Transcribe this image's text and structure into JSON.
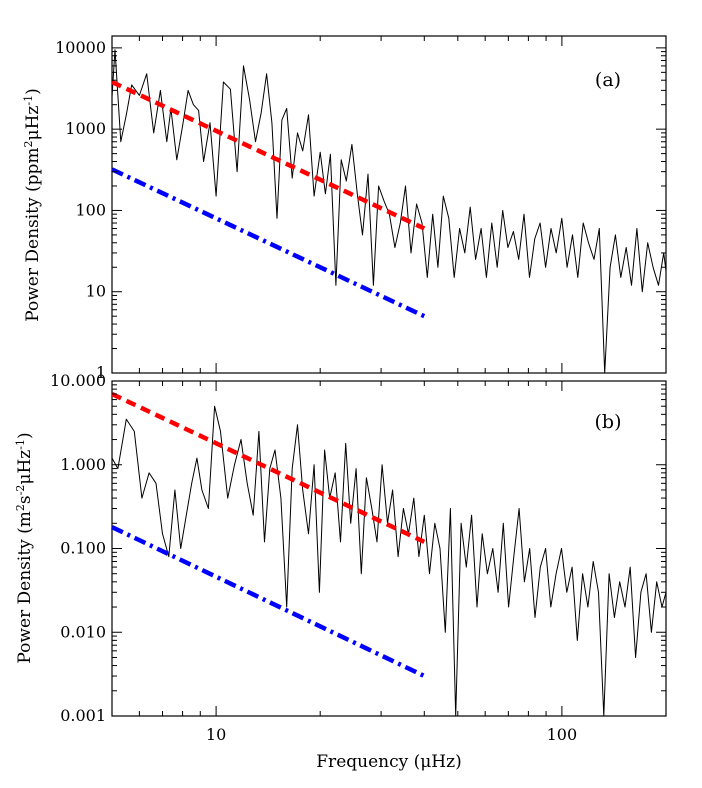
{
  "chart_data": [
    {
      "type": "line",
      "panel_label": "(a)",
      "ylabel_main": "Power Density (ppm",
      "ylabel_sup1": "2",
      "ylabel_mid": "μHz",
      "ylabel_sup2": "-1",
      "ylabel_end": ")",
      "xscale": "log",
      "yscale": "log",
      "xlim": [
        5,
        200
      ],
      "ylim": [
        1,
        14000
      ],
      "ytick_values": [
        1,
        10,
        100,
        1000,
        10000
      ],
      "ytick_labels": [
        "1",
        "10",
        "100",
        "1000",
        "10000"
      ],
      "series": [
        {
          "color": "#000000",
          "style": "solid",
          "x": [
            5.0,
            5.1,
            5.3,
            5.5,
            5.7,
            6.0,
            6.3,
            6.6,
            6.9,
            7.2,
            7.4,
            7.7,
            8.0,
            8.3,
            8.6,
            8.9,
            9.2,
            9.6,
            10.0,
            10.5,
            11.0,
            11.5,
            12.0,
            12.5,
            13.0,
            13.5,
            14.0,
            14.5,
            15.0,
            15.5,
            16.0,
            16.6,
            17.2,
            17.8,
            18.5,
            19.2,
            20.0,
            20.7,
            21.4,
            22.2,
            23.0,
            23.8,
            24.7,
            25.6,
            26.5,
            27.5,
            28.5,
            29.5,
            30.6,
            31.7,
            32.9,
            34.1,
            35.3,
            36.6,
            38.0,
            39.4,
            40.8,
            42.3,
            43.8,
            45.4,
            47.1,
            48.8,
            50.6,
            52.4,
            54.3,
            56.3,
            58.4,
            60.5,
            62.7,
            65.0,
            67.4,
            69.8,
            72.4,
            75.0,
            77.7,
            80.6,
            83.5,
            86.5,
            89.7,
            93.0,
            96.3,
            99.9,
            103.5,
            107.3,
            111.2,
            115.2,
            119.4,
            123.8,
            128.3,
            133.0,
            137.8,
            142.8,
            148.0,
            153.4,
            159.0,
            164.8,
            170.8,
            177.0,
            183.5,
            190.2,
            197.0,
            200.0
          ],
          "y": [
            2500,
            9500,
            700,
            1500,
            3500,
            2600,
            4800,
            900,
            3000,
            700,
            1800,
            420,
            1100,
            3000,
            2000,
            1700,
            400,
            1200,
            150,
            3800,
            3100,
            300,
            6000,
            2300,
            700,
            1600,
            4800,
            1200,
            80,
            1300,
            1800,
            250,
            900,
            540,
            1500,
            150,
            520,
            160,
            490,
            12,
            420,
            230,
            650,
            160,
            50,
            280,
            12,
            200,
            130,
            90,
            35,
            70,
            200,
            30,
            120,
            70,
            15,
            90,
            20,
            150,
            80,
            15,
            60,
            30,
            110,
            25,
            60,
            15,
            70,
            20,
            100,
            35,
            55,
            25,
            90,
            15,
            45,
            70,
            20,
            60,
            30,
            80,
            20,
            50,
            15,
            70,
            40,
            25,
            60,
            1,
            20,
            50,
            15,
            35,
            12,
            60,
            10,
            40,
            20,
            12,
            30,
            18
          ]
        },
        {
          "color": "#ff0000",
          "style": "dashed",
          "x": [
            5,
            40
          ],
          "y": [
            3800,
            60
          ]
        },
        {
          "color": "#0000ff",
          "style": "dashdot",
          "x": [
            5,
            40
          ],
          "y": [
            320,
            5
          ]
        }
      ]
    },
    {
      "type": "line",
      "panel_label": "(b)",
      "ylabel_main": "Power Density (m",
      "ylabel_sup1": "2",
      "ylabel_mid": "s",
      "ylabel_sup2": "-2",
      "ylabel_mid2": "μHz",
      "ylabel_sup3": "-1",
      "ylabel_end": ")",
      "xscale": "log",
      "yscale": "log",
      "xlim": [
        5,
        200
      ],
      "ylim": [
        0.001,
        10
      ],
      "xlabel_main": "Frequency (",
      "xlabel_unit": "μHz",
      "xlabel_end": ")",
      "xtick_values": [
        10,
        100
      ],
      "xtick_labels": [
        "10",
        "100"
      ],
      "ytick_values": [
        0.001,
        0.01,
        0.1,
        1,
        10
      ],
      "ytick_labels": [
        "0.001",
        "0.010",
        "0.100",
        "1.000",
        "10.000"
      ],
      "series": [
        {
          "color": "#000000",
          "style": "solid",
          "x": [
            5.0,
            5.2,
            5.5,
            5.8,
            6.1,
            6.4,
            6.7,
            7.0,
            7.3,
            7.6,
            7.9,
            8.2,
            8.5,
            8.8,
            9.1,
            9.5,
            9.9,
            10.3,
            10.8,
            11.3,
            11.8,
            12.3,
            12.8,
            13.3,
            13.8,
            14.3,
            14.8,
            15.4,
            16.0,
            16.6,
            17.2,
            17.8,
            18.5,
            19.2,
            19.9,
            20.6,
            21.3,
            22.1,
            22.9,
            23.7,
            24.5,
            25.4,
            26.3,
            27.2,
            28.2,
            29.2,
            30.2,
            31.3,
            32.4,
            33.6,
            34.8,
            36.0,
            37.3,
            38.6,
            40.0,
            41.4,
            42.9,
            44.4,
            46.0,
            47.6,
            49.3,
            51.1,
            52.9,
            54.8,
            56.8,
            58.8,
            60.9,
            63.1,
            65.4,
            67.7,
            70.1,
            72.6,
            75.2,
            77.9,
            80.7,
            83.6,
            86.6,
            89.7,
            92.9,
            96.2,
            99.7,
            103.3,
            107.0,
            110.8,
            114.8,
            118.9,
            123.2,
            127.6,
            132.2,
            136.9,
            141.8,
            146.9,
            152.2,
            157.6,
            163.3,
            169.2,
            175.2,
            181.5,
            188.0,
            194.8,
            200.0
          ],
          "y": [
            1.2,
            0.9,
            3.5,
            2.5,
            0.4,
            0.8,
            0.6,
            0.15,
            0.08,
            0.5,
            0.1,
            0.25,
            0.6,
            1.2,
            0.5,
            0.3,
            5.0,
            2.5,
            0.4,
            1.0,
            2.0,
            0.6,
            0.25,
            2.5,
            0.12,
            0.9,
            1.5,
            0.4,
            0.02,
            0.9,
            3.0,
            0.5,
            0.15,
            1.0,
            0.03,
            1.5,
            0.4,
            0.8,
            0.12,
            1.8,
            0.2,
            0.9,
            0.05,
            0.7,
            0.3,
            0.12,
            1.0,
            0.2,
            0.5,
            0.08,
            0.3,
            0.15,
            0.4,
            0.08,
            0.25,
            0.05,
            0.2,
            0.1,
            0.01,
            0.3,
            0.001,
            0.2,
            0.06,
            0.25,
            0.02,
            0.15,
            0.05,
            0.1,
            0.03,
            0.2,
            0.02,
            0.08,
            0.3,
            0.04,
            0.1,
            0.015,
            0.06,
            0.1,
            0.02,
            0.05,
            0.1,
            0.03,
            0.06,
            0.008,
            0.05,
            0.02,
            0.07,
            0.03,
            0.001,
            0.05,
            0.015,
            0.04,
            0.02,
            0.06,
            0.005,
            0.03,
            0.05,
            0.01,
            0.04,
            0.02,
            0.03
          ]
        },
        {
          "color": "#ff0000",
          "style": "dashed",
          "x": [
            5,
            40
          ],
          "y": [
            7,
            0.12
          ]
        },
        {
          "color": "#0000ff",
          "style": "dashdot",
          "x": [
            5,
            40
          ],
          "y": [
            0.18,
            0.003
          ]
        }
      ]
    }
  ]
}
